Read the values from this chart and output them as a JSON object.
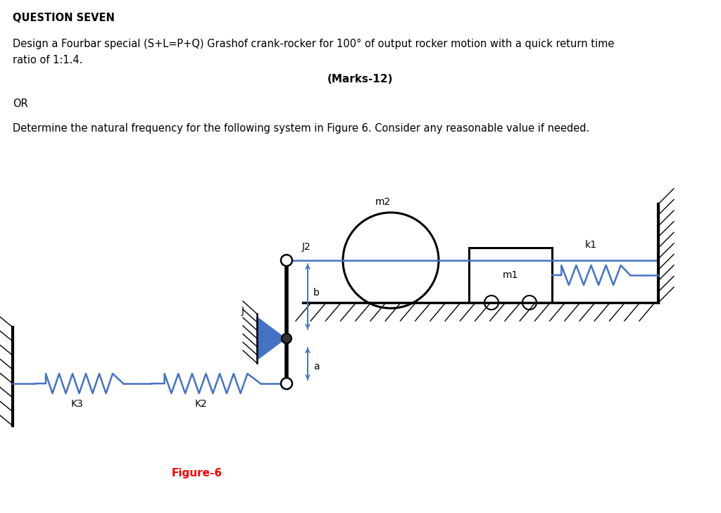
{
  "title_line1": "QUESTION SEVEN",
  "body_line1": "Design a Fourbar special (S+L=P+Q) Grashof crank-rocker for 100° of output rocker motion with a quick return time",
  "body_line2": "ratio of 1:1.4.",
  "marks": "(Marks-12)",
  "or_text": "OR",
  "body_line3": "Determine the natural frequency for the following system in Figure 6. Consider any reasonable value if needed.",
  "figure_label": "Figure-6",
  "bg_color": "#ffffff",
  "text_color": "#000000",
  "blue_color": "#4472C4",
  "title_fontsize": 10.5,
  "body_fontsize": 10.5,
  "fig_label_fontsize": 11
}
